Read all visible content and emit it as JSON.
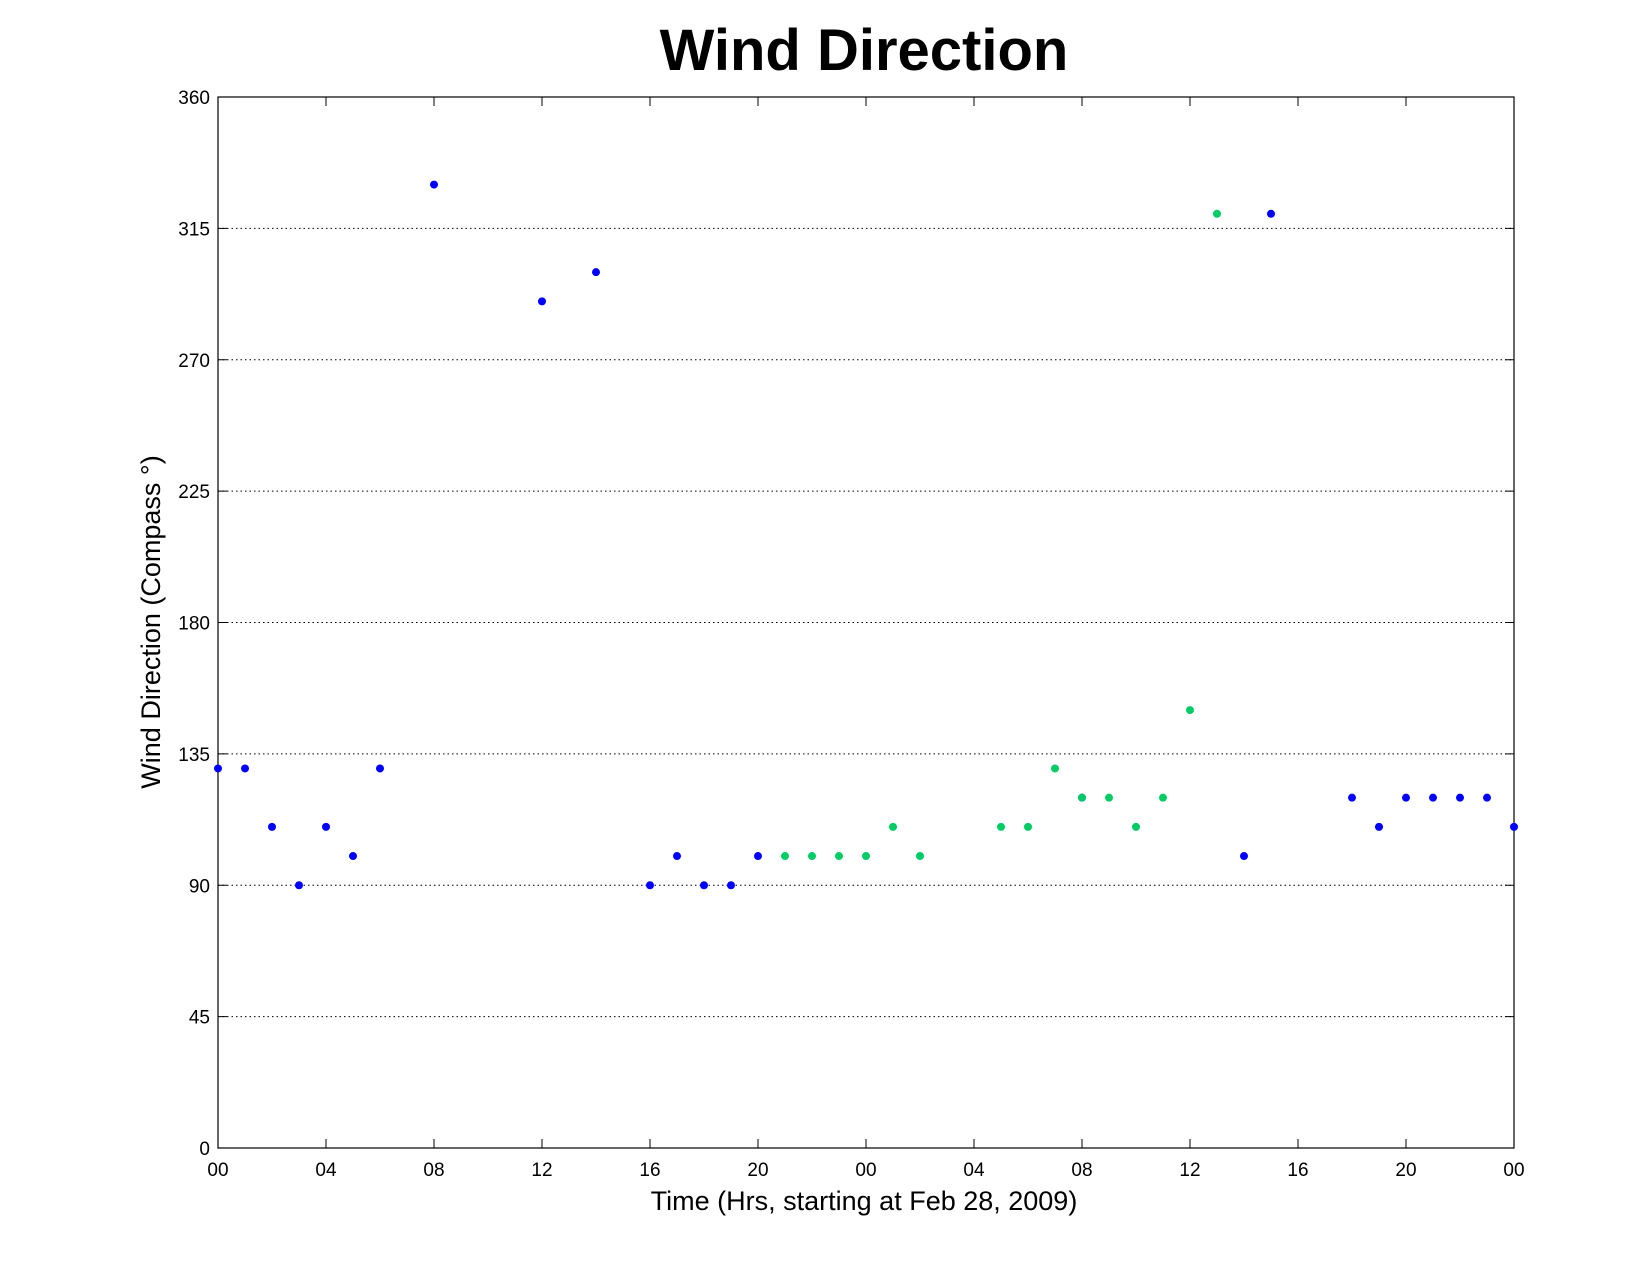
{
  "chart_data": {
    "type": "scatter",
    "title": "Wind Direction",
    "xlabel": "Time (Hrs, starting at Feb 28, 2009)",
    "ylabel": "Wind Direction (Compass  °)",
    "ylim": [
      0,
      360
    ],
    "xlim": [
      0,
      48
    ],
    "yticks": [
      0,
      45,
      90,
      135,
      180,
      225,
      270,
      315,
      360
    ],
    "xticks": [
      {
        "x": 0,
        "label": "00"
      },
      {
        "x": 4,
        "label": "04"
      },
      {
        "x": 8,
        "label": "08"
      },
      {
        "x": 12,
        "label": "12"
      },
      {
        "x": 16,
        "label": "16"
      },
      {
        "x": 20,
        "label": "20"
      },
      {
        "x": 24,
        "label": "00"
      },
      {
        "x": 28,
        "label": "04"
      },
      {
        "x": 32,
        "label": "08"
      },
      {
        "x": 36,
        "label": "12"
      },
      {
        "x": 40,
        "label": "16"
      },
      {
        "x": 44,
        "label": "20"
      },
      {
        "x": 48,
        "label": "00"
      }
    ],
    "grid": "y-dotted",
    "series": [
      {
        "color": "#0000ff",
        "points": [
          [
            0,
            130
          ],
          [
            1,
            130
          ],
          [
            2,
            110
          ],
          [
            3,
            90
          ],
          [
            4,
            110
          ],
          [
            5,
            100
          ],
          [
            6,
            130
          ],
          [
            8,
            330
          ],
          [
            12,
            290
          ],
          [
            14,
            300
          ],
          [
            16,
            90
          ],
          [
            17,
            100
          ],
          [
            18,
            90
          ],
          [
            19,
            90
          ],
          [
            20,
            100
          ],
          [
            32,
            120
          ],
          [
            38,
            100
          ],
          [
            39,
            320
          ],
          [
            42,
            120
          ],
          [
            43,
            110
          ],
          [
            44,
            120
          ],
          [
            45,
            120
          ],
          [
            46,
            120
          ],
          [
            47,
            120
          ],
          [
            48,
            110
          ]
        ]
      },
      {
        "color": "#00cc66",
        "points": [
          [
            21,
            100
          ],
          [
            22,
            100
          ],
          [
            23,
            100
          ],
          [
            24,
            100
          ],
          [
            25,
            110
          ],
          [
            26,
            100
          ],
          [
            29,
            110
          ],
          [
            30,
            110
          ],
          [
            31,
            130
          ],
          [
            32,
            120
          ],
          [
            33,
            120
          ],
          [
            34,
            110
          ],
          [
            35,
            120
          ],
          [
            36,
            150
          ],
          [
            37,
            320
          ]
        ]
      }
    ]
  }
}
